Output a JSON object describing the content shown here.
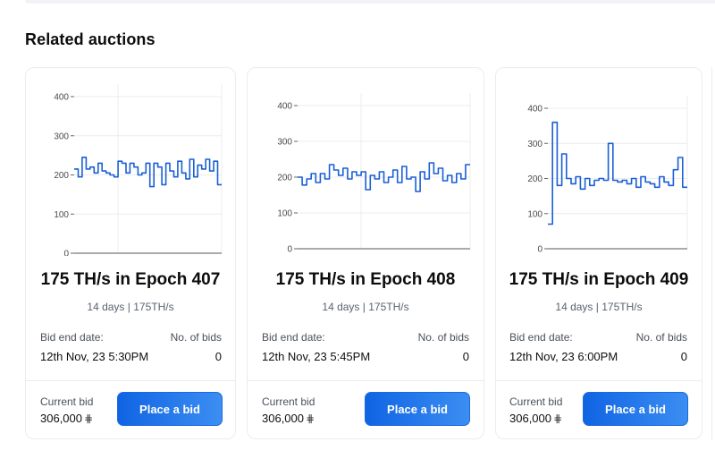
{
  "section": {
    "title": "Related auctions"
  },
  "labels": {
    "bid_end_date": "Bid end date:",
    "no_of_bids": "No. of bids",
    "current_bid": "Current bid",
    "place_bid": "Place a bid",
    "currency_icon": "bitcoin-like-icon"
  },
  "cards": [
    {
      "title": "175 TH/s in Epoch 407",
      "subtitle": "14 days | 175TH/s",
      "end_date": "12th Nov, 23 5:30PM",
      "bids": "0",
      "current_bid": "306,000",
      "currency_symbol": "⋕"
    },
    {
      "title": "175 TH/s in Epoch 408",
      "subtitle": "14 days | 175TH/s",
      "end_date": "12th Nov, 23 5:45PM",
      "bids": "0",
      "current_bid": "306,000",
      "currency_symbol": "⋕"
    },
    {
      "title": "175 TH/s in Epoch 409",
      "subtitle": "14 days | 175TH/s",
      "end_date": "12th Nov, 23 6:00PM",
      "bids": "0",
      "current_bid": "306,000",
      "currency_symbol": "⋕"
    }
  ],
  "chart_data": [
    {
      "type": "line",
      "yticks": [
        0,
        100,
        200,
        300,
        400
      ],
      "ylim": [
        0,
        400
      ],
      "color": "#1a5fd6",
      "values": [
        215,
        195,
        245,
        215,
        220,
        205,
        230,
        210,
        205,
        200,
        195,
        235,
        230,
        205,
        230,
        220,
        200,
        205,
        230,
        170,
        230,
        220,
        175,
        230,
        210,
        195,
        235,
        205,
        190,
        240,
        195,
        225,
        215,
        240,
        210,
        235,
        175
      ]
    },
    {
      "type": "line",
      "yticks": [
        0,
        100,
        200,
        300,
        400
      ],
      "ylim": [
        0,
        400
      ],
      "color": "#1a5fd6",
      "values": [
        200,
        178,
        195,
        210,
        185,
        210,
        195,
        235,
        220,
        205,
        225,
        195,
        215,
        205,
        215,
        165,
        205,
        195,
        215,
        185,
        200,
        220,
        185,
        230,
        195,
        200,
        160,
        215,
        195,
        240,
        210,
        225,
        190,
        205,
        185,
        210,
        195,
        235
      ]
    },
    {
      "type": "line",
      "yticks": [
        0,
        100,
        200,
        300,
        400
      ],
      "ylim": [
        0,
        400
      ],
      "color": "#1a5fd6",
      "values": [
        70,
        360,
        180,
        270,
        200,
        185,
        205,
        170,
        200,
        180,
        195,
        200,
        195,
        300,
        195,
        190,
        195,
        185,
        200,
        175,
        205,
        190,
        185,
        175,
        205,
        190,
        180,
        225,
        260,
        175
      ]
    }
  ]
}
